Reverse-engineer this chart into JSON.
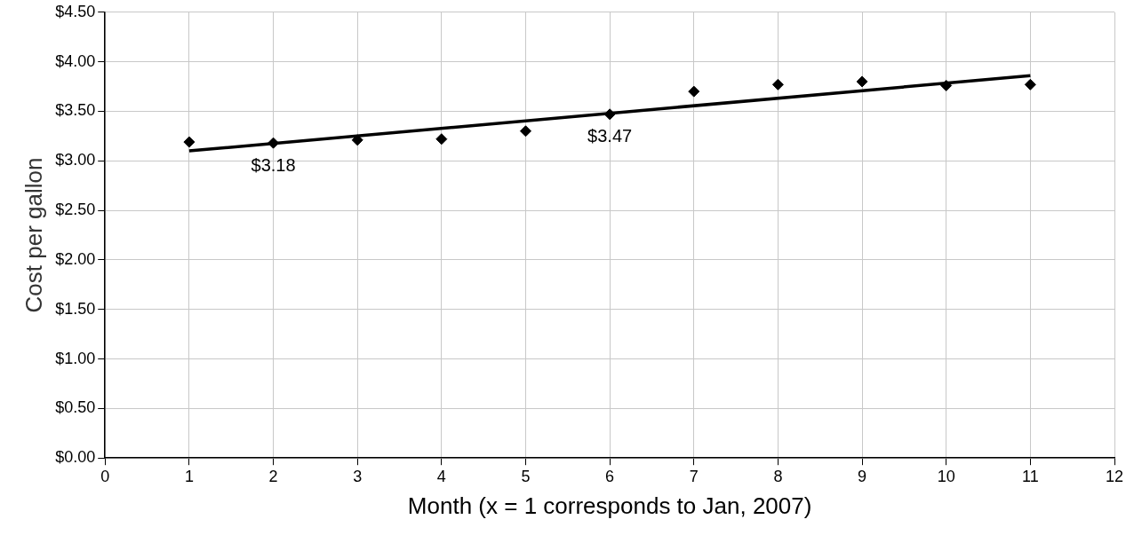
{
  "chart_data": {
    "type": "scatter",
    "xlabel": "Month (x = 1 corresponds to Jan, 2007)",
    "ylabel": "Cost per gallon",
    "x": [
      1,
      2,
      3,
      4,
      5,
      6,
      7,
      8,
      9,
      10,
      11
    ],
    "series": [
      {
        "color": "#000000",
        "marker": "diamond",
        "values": [
          3.19,
          3.18,
          3.21,
          3.22,
          3.3,
          3.47,
          3.7,
          3.77,
          3.8,
          3.76,
          3.77
        ],
        "value_labels": [
          null,
          "$3.18",
          null,
          null,
          null,
          "$3.47",
          null,
          null,
          null,
          null,
          null
        ]
      },
      {
        "type": "line",
        "color": "#000000",
        "marker": "none",
        "line_style": "solid",
        "x": [
          1,
          11
        ],
        "values": [
          3.1,
          3.86
        ]
      }
    ],
    "xlim": [
      0,
      12
    ],
    "xticks": [
      0,
      1,
      2,
      3,
      4,
      5,
      6,
      7,
      8,
      9,
      10,
      11,
      12
    ],
    "ylim": [
      0,
      4.5
    ],
    "yticks": [
      {
        "value": 0,
        "label": "$0.00"
      },
      {
        "value": 0.5,
        "label": "$0.50"
      },
      {
        "value": 1,
        "label": "$1.00"
      },
      {
        "value": 1.5,
        "label": "$1.50"
      },
      {
        "value": 2,
        "label": "$2.00"
      },
      {
        "value": 2.5,
        "label": "$2.50"
      },
      {
        "value": 3,
        "label": "$3.00"
      },
      {
        "value": 3.5,
        "label": "$3.50"
      },
      {
        "value": 4,
        "label": "$4.00"
      },
      {
        "value": 4.5,
        "label": "$4.50"
      }
    ],
    "grid": true,
    "legend": false
  }
}
